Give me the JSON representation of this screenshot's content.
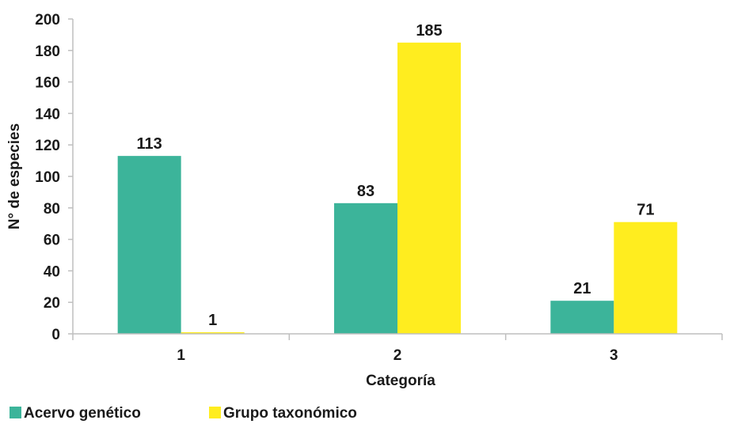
{
  "chart_data": {
    "type": "bar",
    "categories": [
      "1",
      "2",
      "3"
    ],
    "series": [
      {
        "name": "Acervo genético",
        "values": [
          113,
          83,
          21
        ],
        "color": "#3cb49a"
      },
      {
        "name": "Grupo taxonómico",
        "values": [
          1,
          185,
          71
        ],
        "color": "#ffed1f"
      }
    ],
    "xlabel": "Categoría",
    "ylabel": "N° de especies",
    "ylim": [
      0,
      200
    ],
    "yticks": [
      0,
      20,
      40,
      60,
      80,
      100,
      120,
      140,
      160,
      180,
      200
    ],
    "grid": false,
    "legend_position": "bottom-left",
    "axis_color": "#bfbfbf",
    "text_color": "#1a1a1a"
  }
}
